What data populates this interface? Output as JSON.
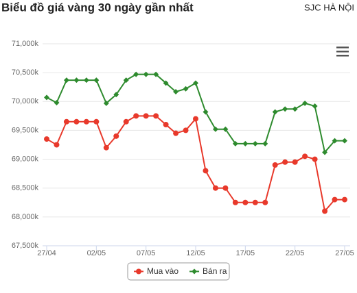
{
  "chart_data": {
    "type": "line",
    "title": "Biểu đồ giá vàng 30 ngày gần nhất",
    "subtitle": "SJC HÀ NỘI",
    "categories": [
      "27/04",
      null,
      null,
      null,
      null,
      "02/05",
      null,
      null,
      null,
      null,
      "07/05",
      null,
      null,
      null,
      null,
      "12/05",
      null,
      null,
      null,
      null,
      "17/05",
      null,
      null,
      null,
      null,
      "22/05",
      null,
      null,
      null,
      null,
      "27/05"
    ],
    "series": [
      {
        "name": "Mua vào",
        "color": "#e8392b",
        "marker": "circle",
        "values": [
          69350,
          69250,
          69650,
          69650,
          69650,
          69650,
          69200,
          69400,
          69650,
          69750,
          69750,
          69750,
          69600,
          69450,
          69500,
          69700,
          68800,
          68500,
          68500,
          68250,
          68250,
          68250,
          68250,
          68900,
          68950,
          68950,
          69050,
          69000,
          68100,
          68300,
          68300
        ]
      },
      {
        "name": "Bán ra",
        "color": "#2e8b2e",
        "marker": "diamond",
        "values": [
          70070,
          69980,
          70370,
          70370,
          70370,
          70370,
          69970,
          70120,
          70370,
          70470,
          70470,
          70470,
          70320,
          70170,
          70220,
          70320,
          69820,
          69520,
          69520,
          69270,
          69270,
          69270,
          69270,
          69820,
          69870,
          69870,
          69970,
          69920,
          69120,
          69320,
          69320
        ]
      }
    ],
    "ylim": [
      67500,
      71000
    ],
    "yticks": [
      {
        "value": 67500,
        "label": "67,500k"
      },
      {
        "value": 68000,
        "label": "68,000k"
      },
      {
        "value": 68500,
        "label": "68,500k"
      },
      {
        "value": 69000,
        "label": "69,000k"
      },
      {
        "value": 69500,
        "label": "69,500k"
      },
      {
        "value": 70000,
        "label": "70,000k"
      },
      {
        "value": 70500,
        "label": "70,500k"
      },
      {
        "value": 71000,
        "label": "71,000k"
      }
    ],
    "grid": true,
    "legend": "bottom"
  }
}
